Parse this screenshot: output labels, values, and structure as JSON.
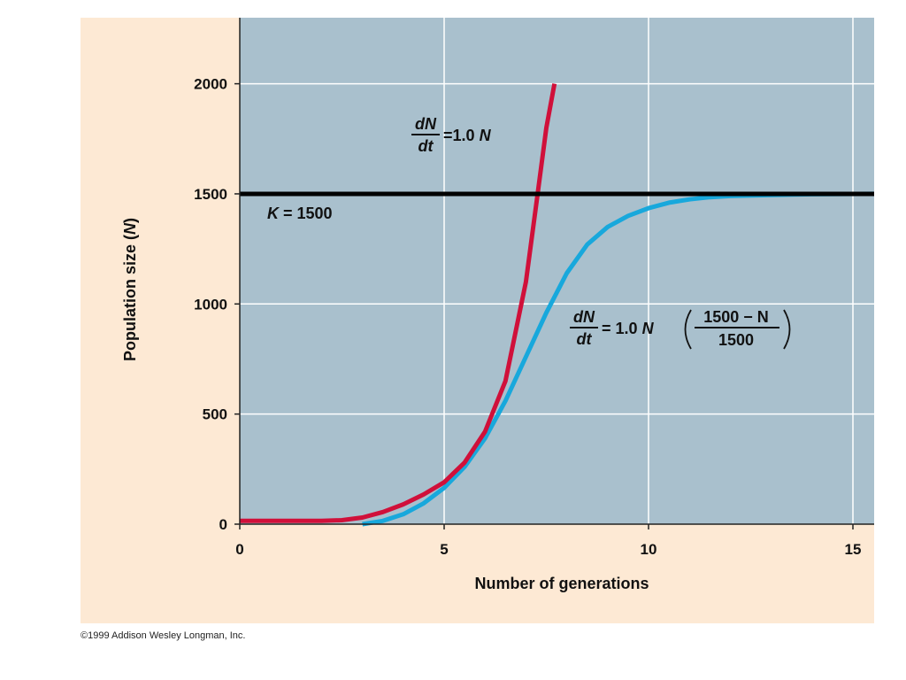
{
  "copyright": "©1999 Addison Wesley Longman, Inc.",
  "colors": {
    "panel_background": "#fde9d4",
    "plot_background": "#a9c0cd",
    "grid": "#ffffff",
    "exponential": "#d0103a",
    "logistic": "#18a8dc",
    "carrying_capacity": "#000000"
  },
  "chart_data": {
    "type": "line",
    "xlabel": "Number of generations",
    "ylabel": "Population size (N)",
    "ylabel_main": "Population size (",
    "ylabel_var": "N",
    "ylabel_close": ")",
    "xlim": [
      0,
      15.5
    ],
    "ylim": [
      0,
      2300
    ],
    "x_ticks": [
      0,
      5,
      10,
      15
    ],
    "y_ticks": [
      0,
      500,
      1000,
      1500,
      2000
    ],
    "grid": true,
    "carrying_capacity": {
      "value": 1500,
      "label_var": "K",
      "label_rest": " = 1500"
    },
    "equations": {
      "exponential": {
        "num": "dN",
        "den": "dt",
        "rhs": "=1.0",
        "var": "N"
      },
      "logistic": {
        "num": "dN",
        "den": "dt",
        "rhs": "= 1.0",
        "var": "N",
        "frac_num": "1500 − N",
        "frac_den": "1500"
      }
    },
    "series": [
      {
        "key": "exponential",
        "x": [
          0,
          1,
          2,
          2.5,
          3,
          3.5,
          4,
          4.5,
          5,
          5.5,
          6,
          6.5,
          7,
          7.25,
          7.5,
          7.7
        ],
        "y": [
          15,
          15,
          15,
          18,
          30,
          55,
          90,
          135,
          190,
          280,
          420,
          650,
          1100,
          1450,
          1800,
          2000
        ]
      },
      {
        "key": "logistic",
        "x": [
          3,
          3.5,
          4,
          4.5,
          5,
          5.5,
          6,
          6.5,
          7,
          7.5,
          8,
          8.5,
          9,
          9.5,
          10,
          10.5,
          11,
          11.5,
          12,
          13,
          14,
          15.5
        ],
        "y": [
          0,
          15,
          45,
          95,
          165,
          260,
          390,
          560,
          760,
          960,
          1140,
          1270,
          1350,
          1400,
          1435,
          1460,
          1475,
          1485,
          1490,
          1495,
          1498,
          1500
        ]
      }
    ]
  }
}
